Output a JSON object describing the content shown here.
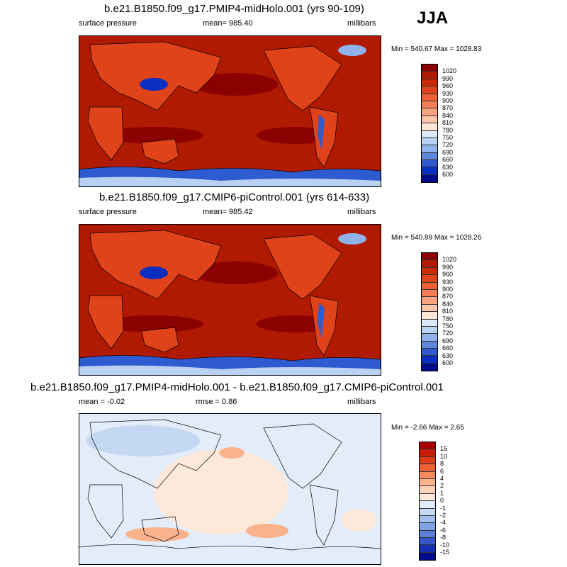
{
  "season": "JJA",
  "chart_data": [
    {
      "type": "heatmap",
      "title": "b.e21.B1850.f09_g17.PMIP4-midHolo.001 (yrs 90-109)",
      "variable": "surface pressure",
      "mean_label": "mean= 985.40",
      "units": "millibars",
      "minmax": "Min = 540.67 Max = 1028.83",
      "min": 540.67,
      "max": 1028.83,
      "mean": 985.4,
      "levels": [
        "1020",
        "990",
        "960",
        "930",
        "900",
        "870",
        "840",
        "810",
        "780",
        "750",
        "720",
        "690",
        "660",
        "630",
        "600"
      ],
      "colors": [
        "#8b0000",
        "#b01a00",
        "#cc2a04",
        "#e0431a",
        "#ef6035",
        "#f57e56",
        "#f9a27f",
        "#fcc5aa",
        "#fde6d8",
        "#dce9f8",
        "#b9d1f2",
        "#8fb2ea",
        "#5d87dc",
        "#2f5bd0",
        "#0a2ec0",
        "#000c8a"
      ]
    },
    {
      "type": "heatmap",
      "title": "b.e21.B1850.f09_g17.CMIP6-piControl.001 (yrs 614-633)",
      "variable": "surface pressure",
      "mean_label": "mean= 985.42",
      "units": "millibars",
      "minmax": "Min = 540.89 Max = 1028.26",
      "min": 540.89,
      "max": 1028.26,
      "mean": 985.42,
      "levels": [
        "1020",
        "990",
        "960",
        "930",
        "900",
        "870",
        "840",
        "810",
        "780",
        "750",
        "720",
        "690",
        "660",
        "630",
        "600"
      ],
      "colors": [
        "#8b0000",
        "#b01a00",
        "#cc2a04",
        "#e0431a",
        "#ef6035",
        "#f57e56",
        "#f9a27f",
        "#fcc5aa",
        "#fde6d8",
        "#dce9f8",
        "#b9d1f2",
        "#8fb2ea",
        "#5d87dc",
        "#2f5bd0",
        "#0a2ec0",
        "#000c8a"
      ]
    },
    {
      "type": "heatmap",
      "title": "b.e21.B1850.f09_g17.PMIP4-midHolo.001 - b.e21.B1850.f09_g17.CMIP6-piControl.001",
      "mean_label": "mean =  -0.02",
      "rmse_label": "rmse =   0.86",
      "units": "millibars",
      "minmax": "Min =  -2.66 Max =   2.65",
      "min": -2.66,
      "max": 2.65,
      "mean": -0.02,
      "rmse": 0.86,
      "levels": [
        "15",
        "10",
        "8",
        "6",
        "4",
        "2",
        "1",
        "0",
        "-1",
        "-2",
        "-4",
        "-6",
        "-8",
        "-10",
        "-15"
      ],
      "colors": [
        "#a50000",
        "#cc1a0a",
        "#e03c1c",
        "#ee6036",
        "#f58a5e",
        "#fab28c",
        "#fdd2b8",
        "#fde9da",
        "#e3edf9",
        "#c4d8f3",
        "#a0bfec",
        "#7ea2e2",
        "#5a80d8",
        "#3658c8",
        "#1530b0",
        "#000c8a"
      ]
    }
  ]
}
